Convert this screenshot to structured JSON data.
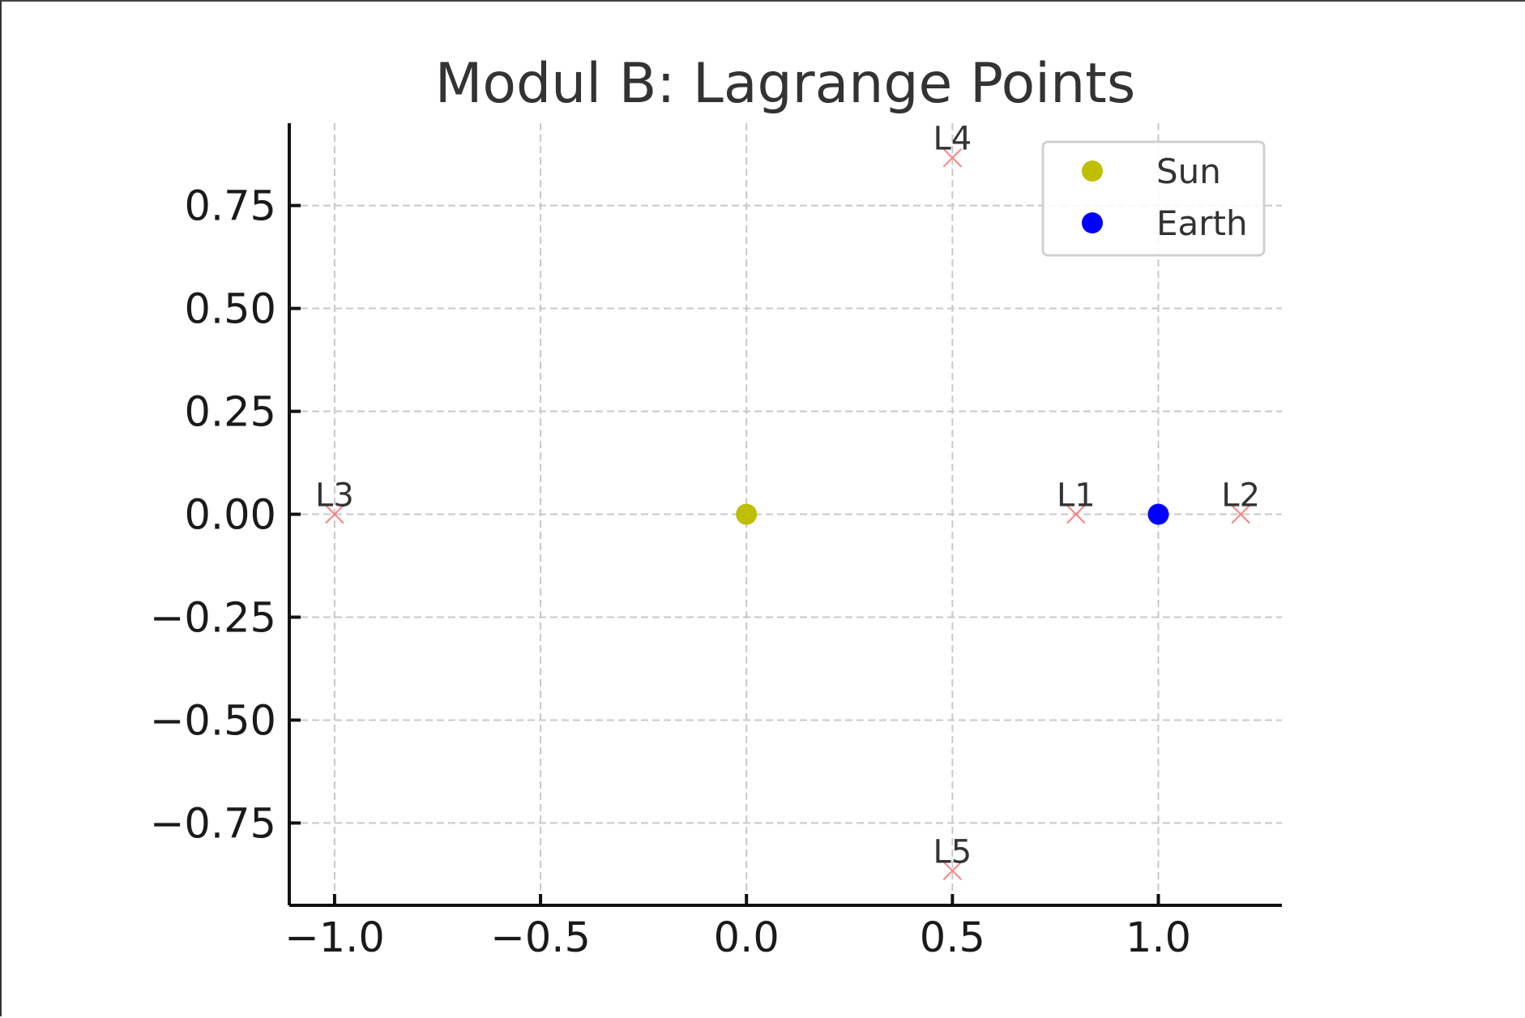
{
  "chart_data": {
    "type": "scatter",
    "title": "Modul B: Lagrange Points",
    "xlabel": "",
    "ylabel": "",
    "xlim": [
      -1.11,
      1.3
    ],
    "ylim": [
      -0.95,
      0.95
    ],
    "x_ticks": [
      -1.0,
      -0.5,
      0.0,
      0.5,
      1.0
    ],
    "x_tick_labels": [
      "−1.0",
      "−0.5",
      "0.0",
      "0.5",
      "1.0"
    ],
    "y_ticks": [
      0.75,
      0.5,
      0.25,
      0.0,
      -0.25,
      -0.5,
      -0.75
    ],
    "y_tick_labels": [
      "0.75",
      "0.50",
      "0.25",
      "0.00",
      "−0.25",
      "−0.50",
      "−0.75"
    ],
    "grid": true,
    "legend_position": "top-right",
    "series": [
      {
        "name": "Sun",
        "color": "#bfbf00",
        "marker": "circle",
        "points": [
          {
            "x": 0.0,
            "y": 0.0
          }
        ]
      },
      {
        "name": "Earth",
        "color": "#0000ff",
        "marker": "circle",
        "points": [
          {
            "x": 1.0,
            "y": 0.0
          }
        ]
      }
    ],
    "lagrange_points": {
      "color": "#ff8080",
      "marker": "x",
      "points": [
        {
          "label": "L1",
          "x": 0.8,
          "y": 0.0
        },
        {
          "label": "L2",
          "x": 1.2,
          "y": 0.0
        },
        {
          "label": "L3",
          "x": -1.0,
          "y": 0.0
        },
        {
          "label": "L4",
          "x": 0.5,
          "y": 0.866
        },
        {
          "label": "L5",
          "x": 0.5,
          "y": -0.866
        }
      ]
    }
  }
}
